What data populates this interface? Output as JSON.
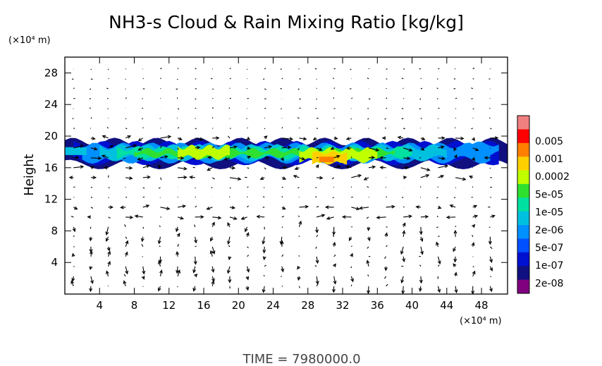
{
  "chart_data": {
    "type": "heatmap",
    "title": "NH3-s Cloud & Rain Mixing Ratio [kg/kg]",
    "ylabel": "Height",
    "x_unit": "(×10⁴ m)",
    "y_unit": "(×10⁴ m)",
    "xlim": [
      0,
      51
    ],
    "ylim": [
      0,
      30
    ],
    "x_ticks": [
      "4",
      "8",
      "12",
      "16",
      "20",
      "24",
      "28",
      "32",
      "36",
      "40",
      "44",
      "48"
    ],
    "y_ticks": [
      "4",
      "8",
      "12",
      "16",
      "20",
      "24",
      "28"
    ],
    "colorbar": {
      "labels": [
        "0.005",
        "0.001",
        "0.0002",
        "5e-05",
        "1e-05",
        "2e-06",
        "5e-07",
        "1e-07",
        "2e-08"
      ],
      "colors": [
        "#f08080",
        "#ff0000",
        "#ff8000",
        "#ffd000",
        "#c0ff00",
        "#30e030",
        "#00e0a0",
        "#00c0e0",
        "#0090ff",
        "#0050ff",
        "#0010d0",
        "#101080",
        "#800080"
      ]
    },
    "cloud_layer": {
      "base_height": 16,
      "top_height": 20,
      "x_extent": [
        0,
        51
      ],
      "peak": {
        "x": 30,
        "height": 17,
        "value": "0.0002"
      }
    },
    "footer": "TIME  =  7980000.0"
  }
}
